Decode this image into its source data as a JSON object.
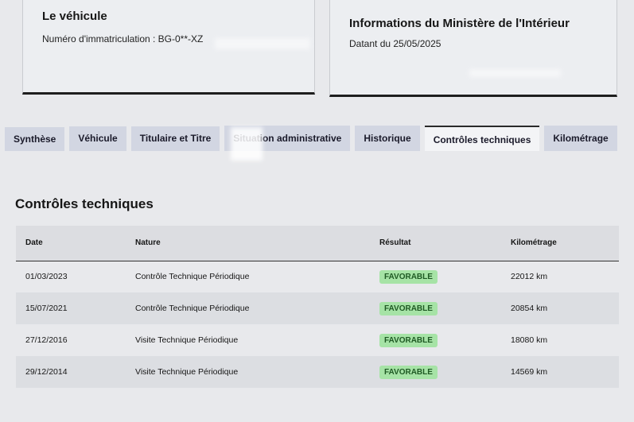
{
  "vehicle_card": {
    "title": "Le véhicule",
    "plate_label": "Numéro d'immatriculation : BG-0**-XZ"
  },
  "ministry_card": {
    "title": "Informations du Ministère de l'Intérieur",
    "date_label": "Datant du 25/05/2025"
  },
  "tabs": [
    {
      "label": "Synthèse"
    },
    {
      "label": "Véhicule"
    },
    {
      "label": "Titulaire et Titre"
    },
    {
      "label": "Situation administrative"
    },
    {
      "label": "Historique"
    },
    {
      "label": "Contrôles techniques",
      "active": true
    },
    {
      "label": "Kilométrage"
    }
  ],
  "section": {
    "title": "Contrôles techniques"
  },
  "table": {
    "headers": [
      "Date",
      "Nature",
      "Résultat",
      "Kilométrage"
    ],
    "rows": [
      {
        "date": "01/03/2023",
        "nature": "Contrôle Technique Périodique",
        "result": "FAVORABLE",
        "km": "22012 km"
      },
      {
        "date": "15/07/2021",
        "nature": "Contrôle Technique Périodique",
        "result": "FAVORABLE",
        "km": "20854 km"
      },
      {
        "date": "27/12/2016",
        "nature": "Visite Technique Périodique",
        "result": "FAVORABLE",
        "km": "18080 km"
      },
      {
        "date": "29/12/2014",
        "nature": "Visite Technique Périodique",
        "result": "FAVORABLE",
        "km": "14569 km"
      }
    ]
  },
  "colors": {
    "badge_bg": "#a6e3a6",
    "badge_text": "#1f5a24",
    "tab_bg": "#d2d6e2"
  }
}
